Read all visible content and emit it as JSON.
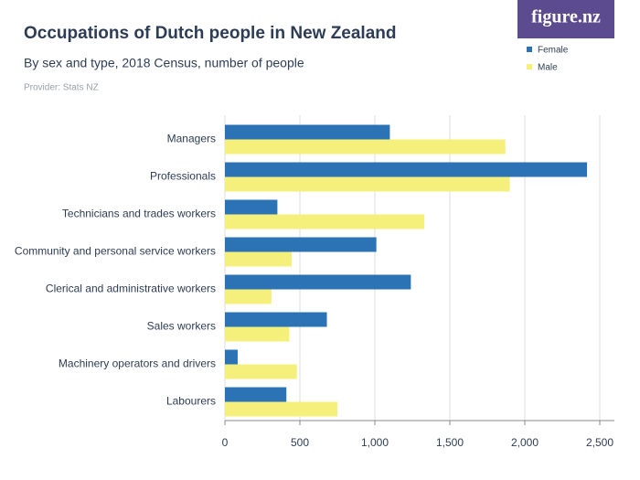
{
  "chart_data": {
    "type": "bar",
    "orientation": "horizontal",
    "title": "Occupations of Dutch people in New Zealand",
    "subtitle": "By sex and type, 2018 Census, number of people",
    "provider": "Provider: Stats NZ",
    "logo": "figure.nz",
    "categories": [
      "Managers",
      "Professionals",
      "Technicians and trades workers",
      "Community and personal service workers",
      "Clerical and administrative workers",
      "Sales workers",
      "Machinery operators and drivers",
      "Labourers"
    ],
    "series": [
      {
        "name": "Female",
        "color": "#2b73b5",
        "values": [
          1100,
          2415,
          350,
          1010,
          1240,
          680,
          85,
          410
        ]
      },
      {
        "name": "Male",
        "color": "#f5f07c",
        "values": [
          1870,
          1900,
          1330,
          445,
          310,
          430,
          480,
          750
        ]
      }
    ],
    "xlim": [
      0,
      2500
    ],
    "xticks": [
      0,
      500,
      {
        "value": 1000,
        "label": "1,000"
      },
      {
        "value": 1500,
        "label": "1,500"
      },
      {
        "value": 2000,
        "label": "2,000"
      },
      {
        "value": 2500,
        "label": "2,500"
      }
    ],
    "grid": true
  }
}
